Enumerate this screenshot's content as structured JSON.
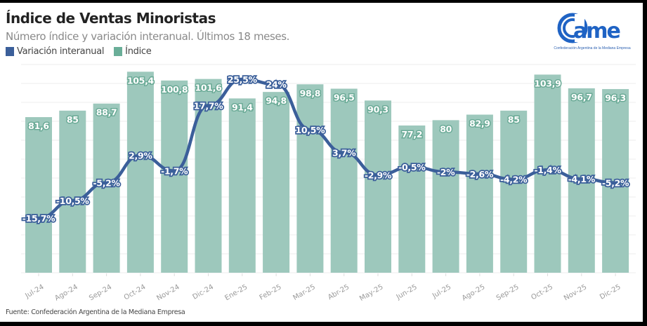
{
  "header": {
    "title": "Índice de Ventas Minoristas",
    "subtitle": "Número índice y variación interanual. Últimos 18 meses."
  },
  "logo": {
    "mark_text": "came",
    "tagline": "Confederación Argentina de la Mediana Empresa"
  },
  "footer": {
    "source": "Fuente: Confederación Argentina de la Mediana Empresa"
  },
  "colors": {
    "bar": "#9dc8bc",
    "bar_label_outline": "#6aaa96",
    "line": "#3b5f9a",
    "grid": "#eeeeee",
    "logo": "#1f63c4"
  },
  "chart_data": {
    "type": "bar+line",
    "title": "Índice de Ventas Minoristas",
    "subtitle": "Número índice y variación interanual. Últimos 18 meses.",
    "legend": [
      {
        "name": "Variación interanual",
        "color": "#3b5f9a"
      },
      {
        "name": "Índice",
        "color": "#6aae98"
      }
    ],
    "legend_position": "top-left",
    "grid": true,
    "categories": [
      "Jul-24",
      "Ago-24",
      "Sep-24",
      "Oct-24",
      "Nov-24",
      "Dic-24",
      "Ene-25",
      "Feb-25",
      "Mar-25",
      "Abr-25",
      "May-25",
      "Jun-25",
      "Jul-25",
      "Ago-25",
      "Sep-25",
      "Oct-25",
      "Nov-25",
      "Dic-25"
    ],
    "series": [
      {
        "name": "Índice",
        "type": "bar",
        "values": [
          81.6,
          85,
          88.7,
          105.4,
          100.8,
          101.6,
          91.4,
          94.8,
          98.8,
          96.5,
          90.3,
          77.2,
          80,
          82.9,
          85,
          103.9,
          96.7,
          96.3
        ],
        "labels": [
          "81,6",
          "85",
          "88,7",
          "105,4",
          "100,8",
          "101,6",
          "91,4",
          "94,8",
          "98,8",
          "96,5",
          "90,3",
          "77,2",
          "80",
          "82,9",
          "85",
          "103,9",
          "96,7",
          "96,3"
        ]
      },
      {
        "name": "Variación interanual",
        "type": "line",
        "unit": "%",
        "values": [
          -15.7,
          -10.5,
          -5.2,
          2.9,
          -1.7,
          17.7,
          25.5,
          24,
          10.5,
          3.7,
          -2.9,
          -0.5,
          -2,
          -2.6,
          -4.2,
          -1.4,
          -4.1,
          -5.2
        ],
        "labels": [
          "-15,7%",
          "-10,5%",
          "-5,2%",
          "2,9%",
          "-1,7%",
          "17,7%",
          "25,5%",
          "24%",
          "10,5%",
          "3,7%",
          "-2,9%",
          "-0,5%",
          "-2%",
          "-2,6%",
          "-4,2%",
          "-1,4%",
          "-4,1%",
          "-5,2%"
        ]
      }
    ],
    "bar_axis_range": [
      0,
      110
    ],
    "line_axis_range": [
      -32,
      30
    ]
  }
}
